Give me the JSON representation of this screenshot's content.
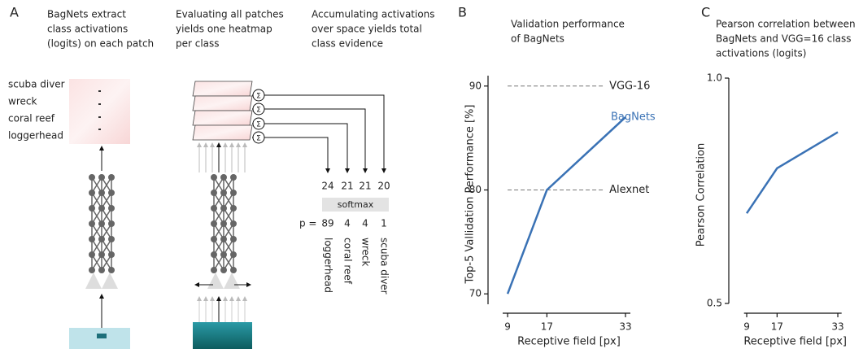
{
  "panel_a": {
    "label": "A",
    "captions": [
      [
        "BagNets extract",
        "class activations",
        "(logits) on each patch"
      ],
      [
        "Evaluating all patches",
        "yields one heatmap",
        "per class"
      ],
      [
        "Accumulating activations",
        "over space yields total",
        "class evidence"
      ]
    ],
    "classes": [
      "scuba diver",
      "wreck",
      "coral reef",
      "loggerhead"
    ],
    "sum_symbol": "Σ",
    "ranked_classes": [
      "loggerhead",
      "coral reef",
      "wreck",
      "scuba diver"
    ],
    "logits": [
      24,
      21,
      21,
      20
    ],
    "softmax": "softmax",
    "p_label": "p =",
    "probabilities": [
      89,
      4,
      4,
      1
    ]
  },
  "chart_data": [
    {
      "panel_label": "B",
      "type": "line",
      "title": [
        "Validation performance",
        "of BagNets"
      ],
      "x": [
        9,
        17,
        33
      ],
      "xlim": [
        7,
        34
      ],
      "xticks": [
        9,
        17,
        33
      ],
      "xlabel": "Receptive field [px]",
      "ylabel": "Top-5 Vallidation Performance [%]",
      "ylim": [
        69,
        91
      ],
      "yticks": [
        70,
        80,
        90
      ],
      "series": [
        {
          "name": "BagNets",
          "color": "#3a72b5",
          "values": [
            70,
            80,
            87
          ]
        }
      ],
      "reference_lines": [
        {
          "name": "VGG-16",
          "value": 90
        },
        {
          "name": "Alexnet",
          "value": 80
        }
      ]
    },
    {
      "panel_label": "C",
      "type": "line",
      "title": [
        "Pearson correlation between",
        "BagNets and VGG=16 class",
        "activations (logits)"
      ],
      "x": [
        9,
        17,
        33
      ],
      "xlim": [
        7,
        34
      ],
      "xticks": [
        9,
        17,
        33
      ],
      "xlabel": "Receptive field [px]",
      "ylabel": "Pearson Correlation",
      "ylim": [
        0.5,
        1.0
      ],
      "yticks": [
        {
          "value": 0.5,
          "label": "0.5"
        },
        {
          "value": 1.0,
          "label": "1.0"
        }
      ],
      "series": [
        {
          "name": "",
          "color": "#3a72b5",
          "values": [
            0.7,
            0.8,
            0.88
          ]
        }
      ]
    }
  ]
}
